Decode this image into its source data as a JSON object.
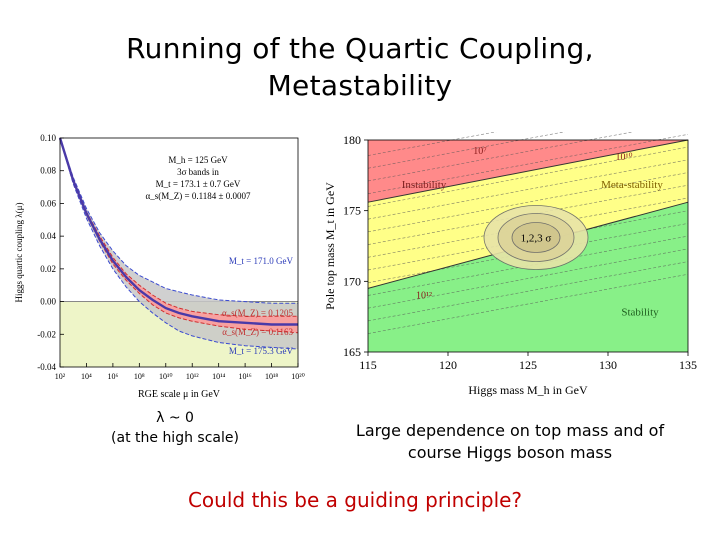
{
  "title": {
    "line1": "Running of the Quartic Coupling,",
    "line2": "Metastability"
  },
  "captions": {
    "left_symbol": "λ ~ 0",
    "left_note": "(at the high scale)",
    "right": "Large dependence on top mass and of course Higgs boson mass",
    "question": "Could this be a guiding principle?"
  },
  "colors": {
    "higgs_curve": "#4a3aa8",
    "gray_band": "#c8c8c8",
    "red_band": "#ff9999",
    "instability": "#ff8a8a",
    "metastability": "#ffff88",
    "stability": "#88f088",
    "question_text": "#c00000"
  },
  "chart_data": [
    {
      "type": "line",
      "xlabel": "RGE scale μ in GeV",
      "ylabel": "Higgs quartic coupling λ(μ)",
      "x_scale": "log10",
      "xlim": [
        100,
        1e+20
      ],
      "ylim": [
        -0.04,
        0.1
      ],
      "x_ticks": [
        "10²",
        "10⁴",
        "10⁶",
        "10⁸",
        "10¹⁰",
        "10¹²",
        "10¹⁴",
        "10¹⁶",
        "10¹⁸",
        "10²⁰"
      ],
      "y_ticks": [
        "0.10",
        "0.08",
        "0.06",
        "0.04",
        "0.02",
        "0.00",
        "-0.02",
        "-0.04"
      ],
      "legend_box": [
        "M_h = 125 GeV",
        "3σ bands in",
        "M_t = 173.1 ± 0.7 GeV",
        "α_s(M_Z) = 0.1184 ± 0.0007"
      ],
      "annotations": [
        "M_t = 171.0 GeV",
        "α_s(M_Z) = 0.1205",
        "α_s(M_Z) = 0.1163",
        "M_t = 175.3 GeV"
      ],
      "series": [
        {
          "role": "central",
          "x": [
            100,
            1000.0,
            10000.0,
            100000.0,
            1000000.0,
            10000000.0,
            100000000.0,
            1000000000.0,
            10000000000.0,
            100000000000.0,
            1000000000000.0,
            100000000000000.0,
            1e+16,
            1e+18,
            1e+20
          ],
          "values": [
            0.1,
            0.074,
            0.054,
            0.038,
            0.025,
            0.015,
            0.007,
            0.001,
            -0.004,
            -0.007,
            -0.009,
            -0.012,
            -0.013,
            -0.014,
            -0.014
          ]
        },
        {
          "role": "gray-upper",
          "x": [
            100,
            1000.0,
            10000.0,
            100000.0,
            1000000.0,
            10000000.0,
            100000000.0,
            1000000000.0,
            10000000000.0,
            100000000000.0,
            1000000000000.0,
            100000000000000.0,
            1e+16,
            1e+18,
            1e+20
          ],
          "values": [
            0.1,
            0.076,
            0.057,
            0.042,
            0.031,
            0.022,
            0.016,
            0.012,
            0.008,
            0.006,
            0.004,
            0.001,
            0.0,
            -0.001,
            -0.001
          ]
        },
        {
          "role": "gray-lower",
          "x": [
            100,
            1000.0,
            10000.0,
            100000.0,
            1000000.0,
            10000000.0,
            100000000.0,
            1000000000.0,
            10000000000.0,
            100000000000.0,
            1000000000000.0,
            100000000000000.0,
            1e+16,
            1e+18,
            1e+20
          ],
          "values": [
            0.1,
            0.072,
            0.051,
            0.034,
            0.02,
            0.009,
            0.0,
            -0.007,
            -0.013,
            -0.018,
            -0.021,
            -0.025,
            -0.027,
            -0.028,
            -0.029
          ]
        },
        {
          "role": "red-upper",
          "x": [
            100,
            1000.0,
            10000.0,
            100000.0,
            1000000.0,
            10000000.0,
            100000000.0,
            1000000000.0,
            10000000000.0,
            100000000000.0,
            1000000000000.0,
            100000000000000.0,
            1e+16,
            1e+18,
            1e+20
          ],
          "values": [
            0.1,
            0.075,
            0.055,
            0.04,
            0.027,
            0.017,
            0.01,
            0.004,
            -0.001,
            -0.004,
            -0.006,
            -0.008,
            -0.009,
            -0.009,
            -0.009
          ]
        },
        {
          "role": "red-lower",
          "x": [
            100,
            1000.0,
            10000.0,
            100000.0,
            1000000.0,
            10000000.0,
            100000000.0,
            1000000000.0,
            10000000000.0,
            100000000000.0,
            1000000000000.0,
            100000000000000.0,
            1e+16,
            1e+18,
            1e+20
          ],
          "values": [
            0.1,
            0.073,
            0.053,
            0.037,
            0.023,
            0.013,
            0.005,
            -0.002,
            -0.007,
            -0.01,
            -0.012,
            -0.015,
            -0.017,
            -0.018,
            -0.019
          ]
        }
      ],
      "regions": [
        {
          "label": "",
          "y_range": [
            -0.04,
            0.0
          ],
          "color": "#eef5c8"
        }
      ],
      "grid": false
    },
    {
      "type": "area",
      "xlabel": "Higgs mass M_h in GeV",
      "ylabel": "Pole top mass M_t in GeV",
      "xlim": [
        115,
        135
      ],
      "ylim": [
        165,
        180
      ],
      "x_ticks": [
        "115",
        "120",
        "125",
        "130",
        "135"
      ],
      "y_ticks": [
        "180",
        "175",
        "170",
        "165"
      ],
      "region_labels": [
        "Instability",
        "Meta-stability",
        "Stability"
      ],
      "scale_labels": [
        "10⁷",
        "10¹⁰",
        "10¹²"
      ],
      "ellipse_label": "1,2,3 σ",
      "ellipse_center": [
        125.5,
        173.1
      ],
      "boundaries": [
        {
          "name": "instability",
          "x": [
            115,
            135
          ],
          "y": [
            175.6,
            180.0
          ]
        },
        {
          "name": "stability",
          "x": [
            115,
            135
          ],
          "y": [
            169.5,
            175.6
          ]
        }
      ],
      "grid": false
    }
  ]
}
